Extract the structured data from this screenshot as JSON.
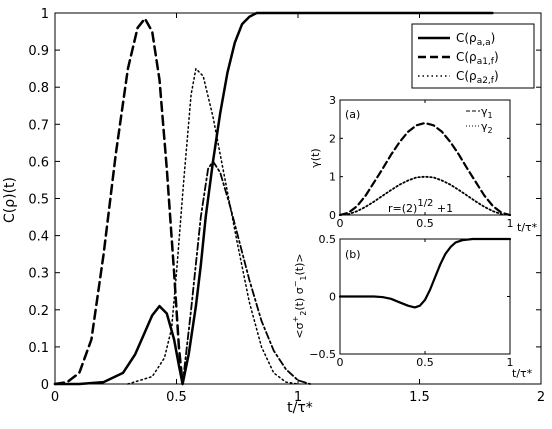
{
  "chart_data": [
    {
      "id": "main",
      "type": "line",
      "xlabel": "t/τ*",
      "ylabel": "C(ρ)(t)",
      "xlim": [
        0,
        2
      ],
      "ylim": [
        0,
        1
      ],
      "xticks": [
        "0",
        "0.5",
        "1",
        "1.5",
        "2"
      ],
      "yticks": [
        "0",
        "0.1",
        "0.2",
        "0.3",
        "0.4",
        "0.5",
        "0.6",
        "0.7",
        "0.8",
        "0.9",
        "1"
      ],
      "legend_position": "top-right",
      "series": [
        {
          "name": "C(ρa,a)",
          "style": "solid",
          "color": "#000000",
          "points": [
            [
              0,
              0
            ],
            [
              0.1,
              0
            ],
            [
              0.2,
              0.005
            ],
            [
              0.28,
              0.03
            ],
            [
              0.33,
              0.08
            ],
            [
              0.37,
              0.14
            ],
            [
              0.4,
              0.185
            ],
            [
              0.43,
              0.21
            ],
            [
              0.46,
              0.19
            ],
            [
              0.49,
              0.12
            ],
            [
              0.51,
              0.05
            ],
            [
              0.525,
              0
            ],
            [
              0.55,
              0.08
            ],
            [
              0.58,
              0.21
            ],
            [
              0.6,
              0.32
            ],
            [
              0.62,
              0.45
            ],
            [
              0.65,
              0.6
            ],
            [
              0.68,
              0.73
            ],
            [
              0.71,
              0.84
            ],
            [
              0.74,
              0.92
            ],
            [
              0.77,
              0.97
            ],
            [
              0.8,
              0.99
            ],
            [
              0.83,
              1.0
            ],
            [
              0.9,
              1.0
            ],
            [
              1.2,
              1.0
            ],
            [
              1.8,
              1.0
            ]
          ]
        },
        {
          "name": "C(ρa1,f)",
          "style": "dashed",
          "color": "#000000",
          "points": [
            [
              0,
              0
            ],
            [
              0.05,
              0.005
            ],
            [
              0.1,
              0.03
            ],
            [
              0.15,
              0.12
            ],
            [
              0.2,
              0.35
            ],
            [
              0.25,
              0.62
            ],
            [
              0.3,
              0.85
            ],
            [
              0.34,
              0.96
            ],
            [
              0.37,
              0.985
            ],
            [
              0.4,
              0.95
            ],
            [
              0.43,
              0.82
            ],
            [
              0.46,
              0.58
            ],
            [
              0.49,
              0.3
            ],
            [
              0.51,
              0.1
            ],
            [
              0.525,
              0
            ]
          ]
        },
        {
          "name": "C(ρa2,f)",
          "style": "dotted",
          "color": "#000000",
          "points": [
            [
              0.3,
              0
            ],
            [
              0.4,
              0.02
            ],
            [
              0.45,
              0.07
            ],
            [
              0.48,
              0.15
            ],
            [
              0.5,
              0.3
            ],
            [
              0.53,
              0.55
            ],
            [
              0.56,
              0.78
            ],
            [
              0.58,
              0.85
            ],
            [
              0.61,
              0.83
            ],
            [
              0.65,
              0.72
            ],
            [
              0.7,
              0.55
            ],
            [
              0.75,
              0.38
            ],
            [
              0.8,
              0.22
            ],
            [
              0.85,
              0.1
            ],
            [
              0.9,
              0.03
            ],
            [
              0.95,
              0.005
            ],
            [
              1.0,
              0
            ]
          ]
        },
        {
          "name": "",
          "style": "dashdot",
          "color": "#000000",
          "points": [
            [
              0.525,
              0
            ],
            [
              0.56,
              0.2
            ],
            [
              0.6,
              0.45
            ],
            [
              0.63,
              0.58
            ],
            [
              0.65,
              0.6
            ],
            [
              0.68,
              0.57
            ],
            [
              0.72,
              0.48
            ],
            [
              0.76,
              0.38
            ],
            [
              0.8,
              0.28
            ],
            [
              0.85,
              0.17
            ],
            [
              0.9,
              0.09
            ],
            [
              0.95,
              0.04
            ],
            [
              1.0,
              0.01
            ],
            [
              1.05,
              0
            ]
          ]
        }
      ]
    },
    {
      "id": "inset_a",
      "type": "line",
      "panel_label": "(a)",
      "xlabel": "t/τ*",
      "ylabel": "γ(t)",
      "xlim": [
        0,
        1
      ],
      "ylim": [
        0,
        3
      ],
      "xticks": [
        "0",
        "0.5",
        "1"
      ],
      "yticks": [
        "0",
        "1",
        "2",
        "3"
      ],
      "annotation": "r=(2)^1/2 +1",
      "legend_position": "top-right",
      "series": [
        {
          "name": "γ1",
          "style": "dashed",
          "color": "#000000",
          "points": [
            [
              0,
              0
            ],
            [
              0.05,
              0.06
            ],
            [
              0.1,
              0.23
            ],
            [
              0.15,
              0.5
            ],
            [
              0.2,
              0.85
            ],
            [
              0.25,
              1.2
            ],
            [
              0.3,
              1.57
            ],
            [
              0.35,
              1.9
            ],
            [
              0.4,
              2.17
            ],
            [
              0.45,
              2.34
            ],
            [
              0.5,
              2.4
            ],
            [
              0.55,
              2.34
            ],
            [
              0.6,
              2.17
            ],
            [
              0.65,
              1.9
            ],
            [
              0.7,
              1.57
            ],
            [
              0.75,
              1.2
            ],
            [
              0.8,
              0.85
            ],
            [
              0.85,
              0.5
            ],
            [
              0.9,
              0.23
            ],
            [
              0.95,
              0.06
            ],
            [
              1.0,
              0
            ]
          ]
        },
        {
          "name": "γ2",
          "style": "dotted",
          "color": "#000000",
          "points": [
            [
              0,
              0
            ],
            [
              0.05,
              0.02
            ],
            [
              0.1,
              0.1
            ],
            [
              0.15,
              0.21
            ],
            [
              0.2,
              0.35
            ],
            [
              0.25,
              0.5
            ],
            [
              0.3,
              0.65
            ],
            [
              0.35,
              0.79
            ],
            [
              0.4,
              0.9
            ],
            [
              0.45,
              0.98
            ],
            [
              0.5,
              1.0
            ],
            [
              0.55,
              0.98
            ],
            [
              0.6,
              0.9
            ],
            [
              0.65,
              0.79
            ],
            [
              0.7,
              0.65
            ],
            [
              0.75,
              0.5
            ],
            [
              0.8,
              0.35
            ],
            [
              0.85,
              0.21
            ],
            [
              0.9,
              0.1
            ],
            [
              0.95,
              0.02
            ],
            [
              1.0,
              0
            ]
          ]
        }
      ]
    },
    {
      "id": "inset_b",
      "type": "line",
      "panel_label": "(b)",
      "xlabel": "t/τ*",
      "ylabel": "<σ2+(t) σ1−(t)>",
      "xlim": [
        0,
        1
      ],
      "ylim": [
        -0.5,
        0.5
      ],
      "xticks": [
        "0",
        "0.5",
        "1"
      ],
      "yticks": [
        "−0.5",
        "0",
        "0.5"
      ],
      "series": [
        {
          "name": "",
          "style": "solid",
          "color": "#000000",
          "points": [
            [
              0,
              0
            ],
            [
              0.1,
              0
            ],
            [
              0.2,
              0
            ],
            [
              0.25,
              -0.005
            ],
            [
              0.3,
              -0.02
            ],
            [
              0.35,
              -0.05
            ],
            [
              0.4,
              -0.08
            ],
            [
              0.44,
              -0.095
            ],
            [
              0.47,
              -0.08
            ],
            [
              0.5,
              -0.03
            ],
            [
              0.53,
              0.06
            ],
            [
              0.56,
              0.17
            ],
            [
              0.59,
              0.28
            ],
            [
              0.62,
              0.37
            ],
            [
              0.65,
              0.43
            ],
            [
              0.68,
              0.47
            ],
            [
              0.72,
              0.49
            ],
            [
              0.78,
              0.5
            ],
            [
              1.0,
              0.5
            ]
          ]
        }
      ]
    }
  ]
}
